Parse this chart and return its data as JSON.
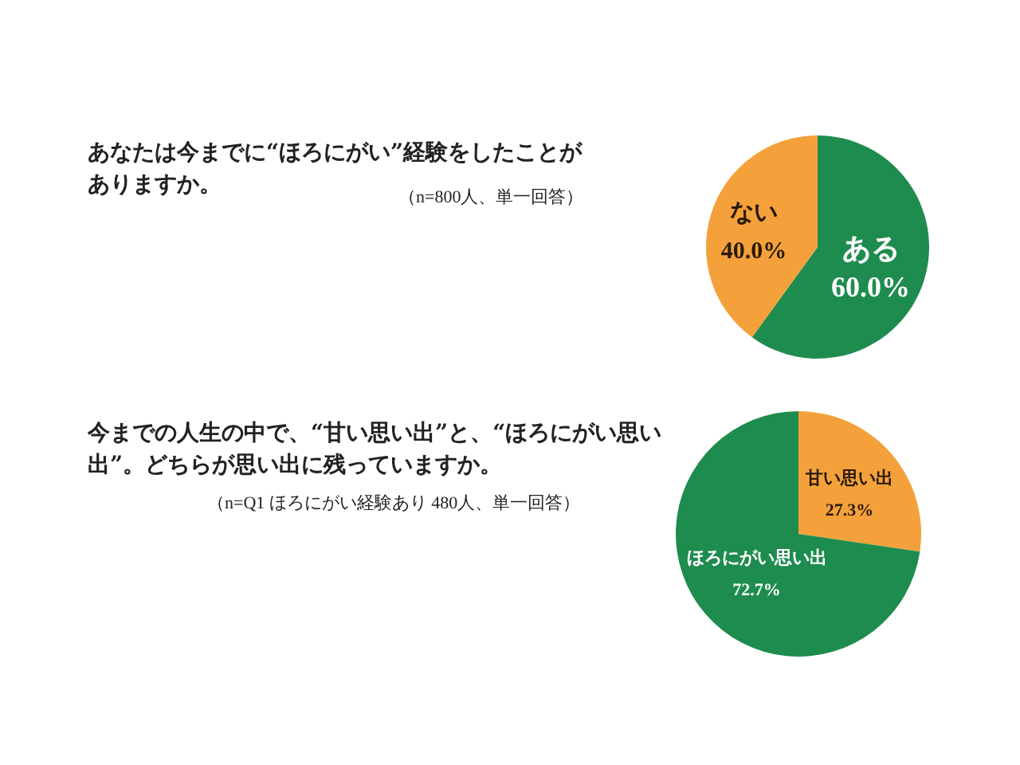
{
  "chart_data": [
    {
      "type": "pie",
      "title": "あなたは今までに“ほろにがい”経験をしたことがありますか。",
      "annotations": [
        "（n=800人、単一回答）"
      ],
      "categories": [
        "ある",
        "ない"
      ],
      "values": [
        60.0,
        40.0
      ],
      "colors": [
        "#1e8c4e",
        "#f4a13b"
      ],
      "value_labels": [
        "60.0%",
        "40.0%"
      ]
    },
    {
      "type": "pie",
      "title": "今までの人生の中で、“甘い思い出”と、“ほろにがい思い出”。どちらが思い出に残っていますか。",
      "annotations": [
        "（n=Q1 ほろにがい経験あり 480人、単一回答）"
      ],
      "categories": [
        "甘い思い出",
        "ほろにがい思い出"
      ],
      "values": [
        27.3,
        72.7
      ],
      "colors": [
        "#f4a13b",
        "#1e8c4e"
      ],
      "value_labels": [
        "27.3%",
        "72.7%"
      ]
    }
  ]
}
